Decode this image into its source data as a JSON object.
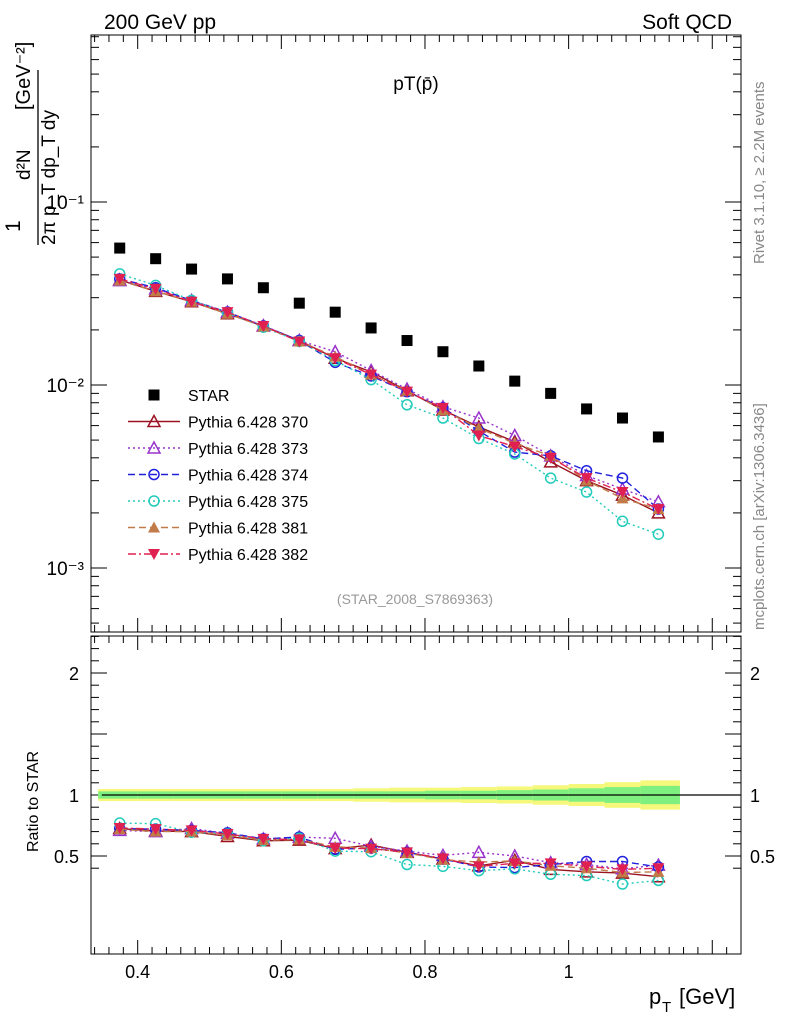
{
  "header": {
    "left": "200 GeV pp",
    "right": "Soft QCD"
  },
  "side_labels": {
    "top": "Rivet 3.1.10, ≥ 2.2M events",
    "bottom": "mcplots.cern.ch [arXiv:1306.3436]"
  },
  "chart_data": [
    {
      "type": "scatter",
      "panel": "main",
      "title": "pT(p̄)",
      "ylabel": "1/(2π pT) d²N/(dpT dy) [GeV⁻²]",
      "ylabel_parts": {
        "one": "1",
        "frac_num": "d²N",
        "frac_den": "2π p_T dp_T dy",
        "unit": "[GeV⁻²]"
      },
      "yscale": "log",
      "ylim": [
        0.0004,
        0.9
      ],
      "xlim": [
        0.335,
        1.24
      ],
      "y_tick_labels": [
        "10⁻¹",
        "10⁻²",
        "10⁻³"
      ],
      "annotation": "(STAR_2008_S7869363)",
      "x": [
        0.375,
        0.425,
        0.475,
        0.525,
        0.575,
        0.625,
        0.675,
        0.725,
        0.775,
        0.825,
        0.875,
        0.925,
        0.975,
        1.025,
        1.075,
        1.125
      ],
      "series": [
        {
          "name": "STAR",
          "color": "#000000",
          "marker": "square",
          "line": "none",
          "values": [
            0.056,
            0.049,
            0.043,
            0.038,
            0.034,
            0.028,
            0.025,
            0.0205,
            0.0175,
            0.0152,
            0.0127,
            0.0105,
            0.009,
            0.0074,
            0.0066,
            0.0052
          ]
        },
        {
          "name": "Pythia 6.428 370",
          "color": "#9b1220",
          "marker": "triangle-up-open",
          "line": "solid",
          "values": [
            0.0375,
            0.0325,
            0.0285,
            0.0245,
            0.021,
            0.0175,
            0.014,
            0.0118,
            0.0093,
            0.0073,
            0.0059,
            0.0049,
            0.0038,
            0.003,
            0.0025,
            0.002
          ]
        },
        {
          "name": "Pythia 6.428 373",
          "color": "#9933cc",
          "marker": "triangle-up-open",
          "line": "dotted",
          "values": [
            0.0372,
            0.0335,
            0.029,
            0.025,
            0.0211,
            0.0175,
            0.0152,
            0.012,
            0.0095,
            0.0076,
            0.0066,
            0.0053,
            0.0041,
            0.0032,
            0.0027,
            0.0023
          ]
        },
        {
          "name": "Pythia 6.428 374",
          "color": "#2020dd",
          "marker": "circle-open",
          "line": "dashed",
          "values": [
            0.038,
            0.034,
            0.0289,
            0.025,
            0.021,
            0.0175,
            0.0133,
            0.0112,
            0.0092,
            0.0075,
            0.0056,
            0.0043,
            0.0041,
            0.0034,
            0.0031,
            0.0021
          ]
        },
        {
          "name": "Pythia 6.428 375",
          "color": "#22ccbb",
          "marker": "circle-open",
          "line": "dotted",
          "values": [
            0.0405,
            0.035,
            0.029,
            0.0248,
            0.0207,
            0.0173,
            0.0136,
            0.0107,
            0.0078,
            0.0066,
            0.0051,
            0.0042,
            0.0031,
            0.0026,
            0.0018,
            0.00153
          ]
        },
        {
          "name": "Pythia 6.428 381",
          "color": "#c07b48",
          "marker": "triangle-up-filled",
          "line": "dashed",
          "values": [
            0.0372,
            0.0325,
            0.0285,
            0.0245,
            0.0209,
            0.0173,
            0.0143,
            0.0114,
            0.0093,
            0.0073,
            0.0058,
            0.0048,
            0.0041,
            0.003,
            0.0024,
            0.0021
          ]
        },
        {
          "name": "Pythia 6.428 382",
          "color": "#e02050",
          "marker": "triangle-down-filled",
          "line": "dashdot",
          "values": [
            0.038,
            0.0335,
            0.0285,
            0.025,
            0.021,
            0.0173,
            0.014,
            0.0114,
            0.0092,
            0.0075,
            0.0053,
            0.0046,
            0.004,
            0.0031,
            0.0026,
            0.0021
          ]
        }
      ]
    },
    {
      "type": "line",
      "panel": "ratio",
      "ylabel": "Ratio to STAR",
      "xlabel": "p_T [GeV]",
      "xlabel_parts": {
        "main": "p",
        "sub": "T",
        "unit": "[GeV]"
      },
      "ylim": [
        0.33,
        2.3
      ],
      "xlim": [
        0.335,
        1.24
      ],
      "x_tick_labels": [
        "0.4",
        "0.6",
        "0.8",
        "1"
      ],
      "y_tick_labels": [
        "0.5",
        "1",
        "2"
      ],
      "band_inner_halfwidth": [
        0.03,
        0.03,
        0.03,
        0.03,
        0.03,
        0.03,
        0.03,
        0.03,
        0.03,
        0.035,
        0.035,
        0.04,
        0.045,
        0.055,
        0.065,
        0.075
      ],
      "band_outer_halfwidth": [
        0.05,
        0.05,
        0.05,
        0.05,
        0.05,
        0.05,
        0.05,
        0.055,
        0.06,
        0.06,
        0.065,
        0.07,
        0.08,
        0.09,
        0.105,
        0.12
      ],
      "x": [
        0.375,
        0.425,
        0.475,
        0.525,
        0.575,
        0.625,
        0.675,
        0.725,
        0.775,
        0.825,
        0.875,
        0.925,
        0.975,
        1.025,
        1.075,
        1.125
      ],
      "series": [
        {
          "name": "Pythia 6.428 370",
          "values": [
            0.725,
            0.705,
            0.7,
            0.66,
            0.625,
            0.63,
            0.56,
            0.59,
            0.53,
            0.475,
            0.42,
            0.465,
            0.39,
            0.37,
            0.36,
            0.33
          ]
        },
        {
          "name": "Pythia 6.428 373",
          "values": [
            0.71,
            0.7,
            0.725,
            0.685,
            0.64,
            0.655,
            0.645,
            0.58,
            0.54,
            0.505,
            0.53,
            0.5,
            0.445,
            0.43,
            0.395,
            0.425
          ]
        },
        {
          "name": "Pythia 6.428 374",
          "values": [
            0.725,
            0.72,
            0.71,
            0.69,
            0.64,
            0.655,
            0.555,
            0.565,
            0.53,
            0.475,
            0.41,
            0.405,
            0.43,
            0.455,
            0.455,
            0.41
          ]
        },
        {
          "name": "Pythia 6.428 375",
          "values": [
            0.77,
            0.765,
            0.695,
            0.68,
            0.625,
            0.645,
            0.54,
            0.535,
            0.43,
            0.415,
            0.38,
            0.395,
            0.35,
            0.34,
            0.27,
            0.3
          ]
        },
        {
          "name": "Pythia 6.428 381",
          "values": [
            0.72,
            0.7,
            0.7,
            0.67,
            0.63,
            0.635,
            0.575,
            0.565,
            0.525,
            0.47,
            0.45,
            0.46,
            0.42,
            0.4,
            0.365,
            0.37
          ]
        },
        {
          "name": "Pythia 6.428 382",
          "values": [
            0.73,
            0.72,
            0.71,
            0.68,
            0.64,
            0.635,
            0.565,
            0.56,
            0.53,
            0.48,
            0.415,
            0.44,
            0.44,
            0.415,
            0.39,
            0.4
          ]
        }
      ]
    }
  ]
}
